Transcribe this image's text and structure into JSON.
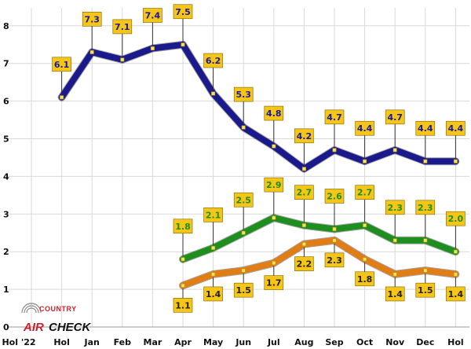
{
  "chart_data": {
    "type": "line",
    "categories": [
      "Hol '22",
      "Hol",
      "Jan",
      "Feb",
      "Mar",
      "Apr",
      "May",
      "Jun",
      "Jul",
      "Aug",
      "Sep",
      "Oct",
      "Nov",
      "Dec",
      "Hol"
    ],
    "ylim": [
      0,
      8
    ],
    "yticks": [
      0,
      1,
      2,
      3,
      4,
      5,
      6,
      7,
      8
    ],
    "grid": true,
    "series": [
      {
        "color": "#1a1a8c",
        "label_color": "#1a1aa0",
        "values": [
          null,
          6.1,
          7.3,
          7.1,
          7.4,
          7.5,
          6.2,
          5.3,
          4.8,
          4.2,
          4.7,
          4.4,
          4.7,
          4.4,
          4.4
        ],
        "label_labels": [
          "",
          "6.1",
          "7.3",
          "7.1",
          "7.4",
          "7.5",
          "6.2",
          "5.3",
          "4.8",
          "4.2",
          "4.7",
          "4.4",
          "4.7",
          "4.4",
          "4.4"
        ],
        "label_position": "above"
      },
      {
        "color": "#1e8f1e",
        "label_color": "#1e8f1e",
        "values": [
          null,
          null,
          null,
          null,
          null,
          1.8,
          2.1,
          2.5,
          2.9,
          2.7,
          2.6,
          2.7,
          2.3,
          2.3,
          2.0
        ],
        "label_labels": [
          "",
          "",
          "",
          "",
          "",
          "1.8",
          "2.1",
          "2.5",
          "2.9",
          "2.7",
          "2.6",
          "2.7",
          "2.3",
          "2.3",
          "2.0"
        ],
        "label_position": "above"
      },
      {
        "color": "#e07d14",
        "label_color": "#222222",
        "values": [
          null,
          null,
          null,
          null,
          null,
          1.1,
          1.4,
          1.5,
          1.7,
          2.2,
          2.3,
          1.8,
          1.4,
          1.5,
          1.4
        ],
        "label_labels": [
          "",
          "",
          "",
          "",
          "",
          "1.1",
          "1.4",
          "1.5",
          "1.7",
          "2.2",
          "2.3",
          "1.8",
          "1.4",
          "1.5",
          "1.4"
        ],
        "label_position": "below"
      }
    ],
    "label_box_color": "#f5c518"
  },
  "logo": {
    "line1": "COUNTRY",
    "line2a": "AIR",
    "line2b": "CHECK"
  }
}
